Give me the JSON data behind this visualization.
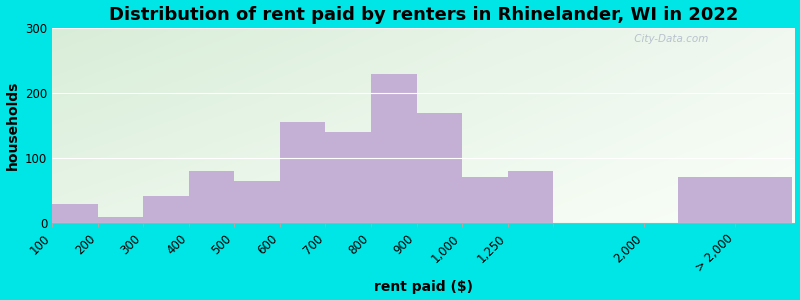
{
  "title": "Distribution of rent paid by renters in Rhinelander, WI in 2022",
  "xlabel": "rent paid ($)",
  "ylabel": "households",
  "bar_color": "#c4b0d5",
  "background_outer": "#00e5e5",
  "background_top_left": "#d8edd8",
  "background_top_right": "#f0f8f0",
  "background_bottom_left": "#e8f5e8",
  "background_bottom_right": "#fafff8",
  "categories": [
    "100",
    "200",
    "300",
    "400",
    "500",
    "600",
    "700",
    "800",
    "900",
    "1,000",
    "1,250",
    "2,000",
    "> 2,000"
  ],
  "values": [
    30,
    10,
    42,
    80,
    65,
    155,
    140,
    230,
    170,
    72,
    80,
    0,
    72
  ],
  "ylim": [
    0,
    300
  ],
  "yticks": [
    0,
    100,
    200,
    300
  ],
  "title_fontsize": 13,
  "axis_label_fontsize": 10,
  "tick_fontsize": 8.5,
  "watermark": " City-Data.com"
}
